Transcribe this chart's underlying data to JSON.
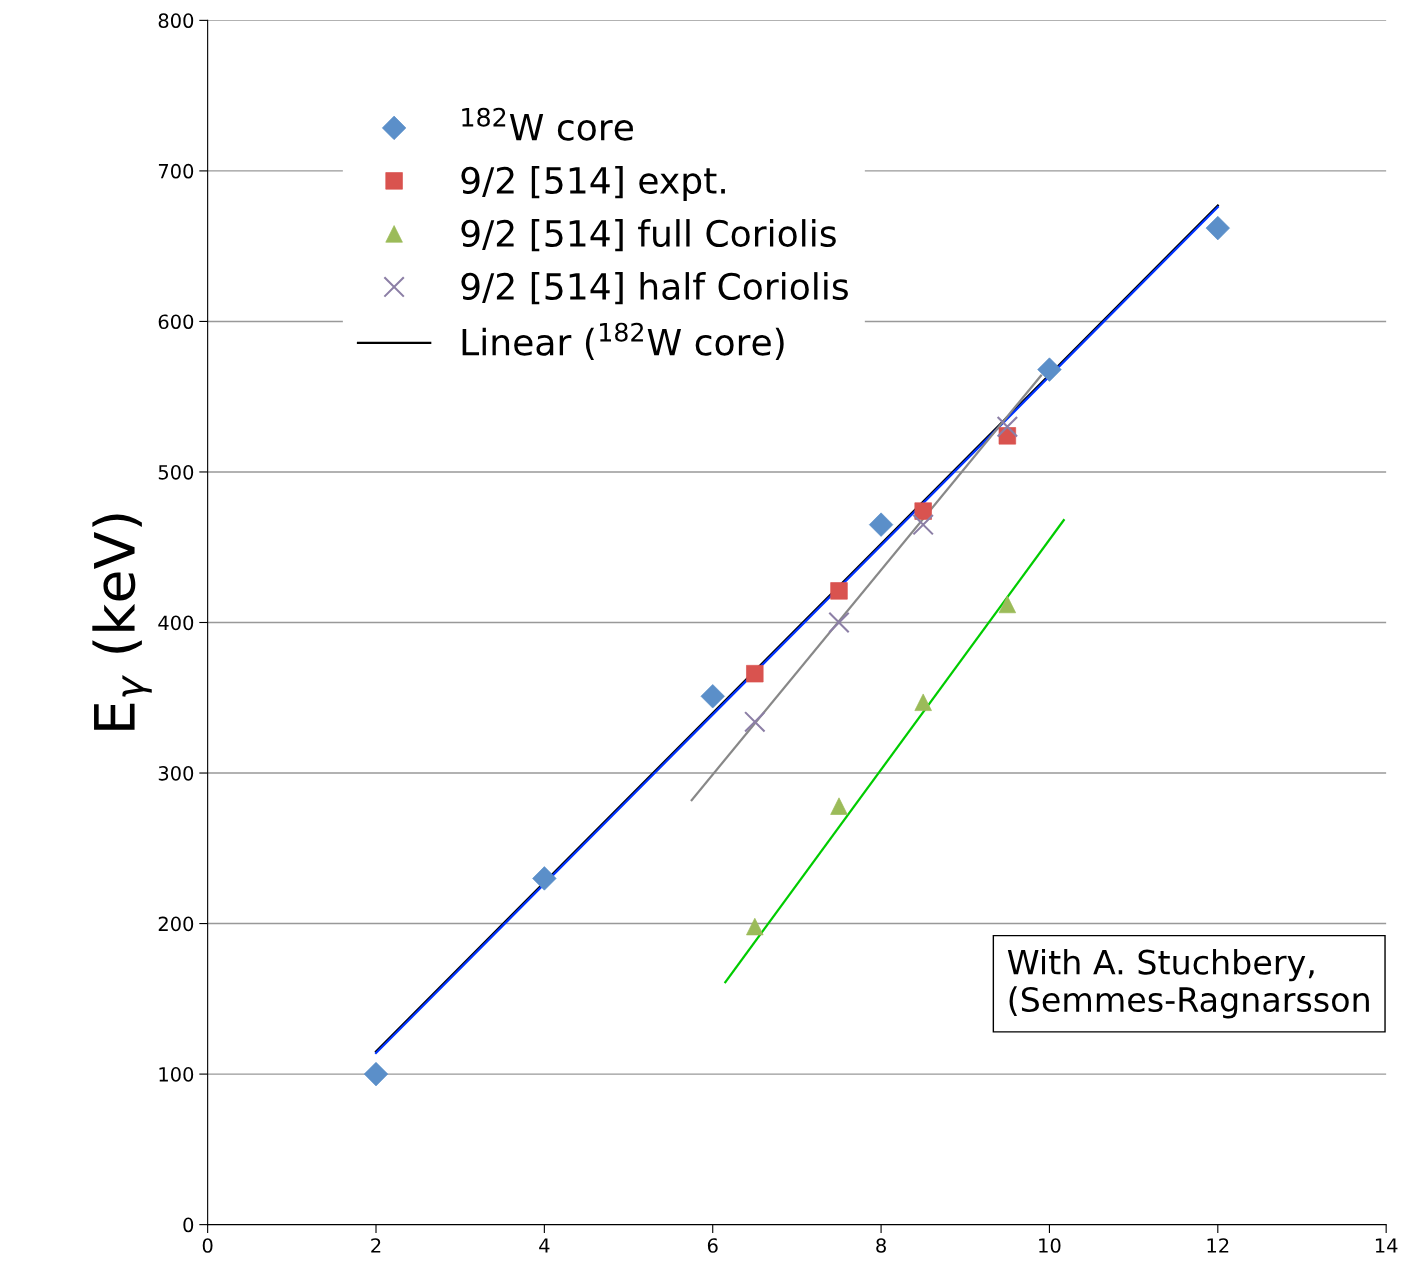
{
  "chart_data": {
    "type": "scatter",
    "ylabel": "E$_{γ}$ (keV)",
    "xlim": [
      0,
      14
    ],
    "xticks": [
      0,
      2,
      4,
      6,
      8,
      10,
      12,
      14
    ],
    "ylim": [
      0,
      800
    ],
    "yticks": [
      0,
      100,
      200,
      300,
      400,
      500,
      600,
      700,
      800
    ],
    "grid": "y",
    "legend": "top left",
    "series": [
      {
        "name": "$^{182}$W core",
        "color": "#5b8fc9",
        "marker": "diamond",
        "x": [
          2,
          4,
          6,
          8,
          10,
          12
        ],
        "values": [
          100,
          230,
          351,
          465,
          568,
          662
        ]
      },
      {
        "name": "9/2 [514] expt.",
        "color": "#d9534f",
        "marker": "square",
        "x": [
          6.5,
          7.5,
          8.5,
          9.5
        ],
        "values": [
          366,
          421,
          474,
          524
        ]
      },
      {
        "name": "9/2 [514] full Coriolis",
        "color": "#9bbb59",
        "marker": "triangle",
        "x": [
          6.5,
          7.5,
          8.5,
          9.5
        ],
        "values": [
          198,
          278,
          347,
          412
        ]
      },
      {
        "name": "9/2 [514] half Coriolis",
        "color": "#8c7fa6",
        "marker": "cross",
        "x": [
          6.5,
          7.5,
          8.5,
          9.5
        ],
        "values": [
          334,
          400,
          465,
          530
        ]
      },
      {
        "name": "Linear ($^{182}$W core)",
        "type": "line",
        "color": "#000000",
        "x": [
          2,
          12
        ],
        "values": [
          115,
          677
        ]
      },
      {
        "type": "line",
        "color": "#0033ff",
        "x": [
          2,
          12
        ],
        "values": [
          114,
          676
        ]
      },
      {
        "type": "line",
        "color": "#888888",
        "x": [
          5.75,
          9.9
        ],
        "values": [
          282,
          564
        ]
      },
      {
        "type": "line",
        "color": "#00cc00",
        "x": [
          6.15,
          10.17
        ],
        "values": [
          161,
          468
        ]
      }
    ],
    "annotations": [
      "With A. Stuchbery,\n(Semmes-Ragnarsson"
    ]
  }
}
